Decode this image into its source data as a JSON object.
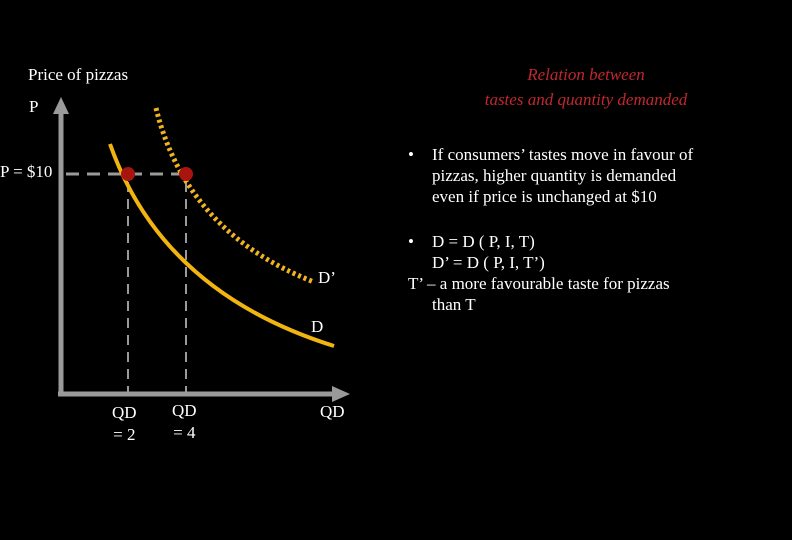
{
  "axes": {
    "y_title": "Price of pizzas",
    "y_symbol": "P",
    "x_symbol": "QD"
  },
  "price_label": "P = $10",
  "curves": {
    "demand_label": "D",
    "shifted_demand_label": "D’"
  },
  "quantity_labels": [
    {
      "top": "QD",
      "bottom": "= 2"
    },
    {
      "top": "QD",
      "bottom": "= 4"
    }
  ],
  "title": {
    "line1": "Relation between",
    "line2": "tastes and quantity demanded"
  },
  "bullets": {
    "bullet_glyph": "•",
    "first": [
      "If consumers’ tastes move in favour of",
      "pizzas, higher quantity is demanded",
      "even if price is unchanged at $10"
    ],
    "second": [
      "D = D ( P, I, T)",
      "D’ = D ( P, I, T’)",
      "T’ – a more favourable taste for pizzas",
      "than T"
    ]
  },
  "colors": {
    "background": "#000000",
    "axis": "#9a9a9a",
    "demand_curve": "#f2b40f",
    "shifted_curve": "#f0b41e",
    "point": "#a8140e",
    "title": "#c0282d",
    "guide": "#9a9a9a"
  }
}
